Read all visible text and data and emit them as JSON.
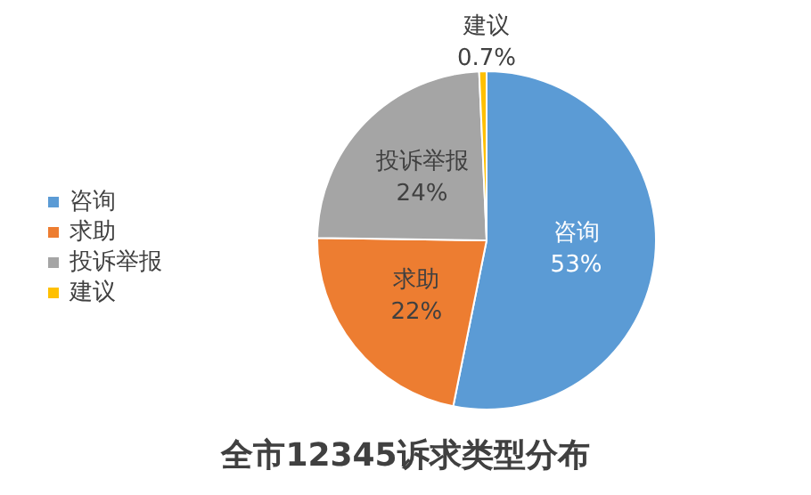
{
  "chart_data": {
    "type": "pie",
    "title": "全市12345诉求类型分布",
    "categories": [
      "咨询",
      "求助",
      "投诉举报",
      "建议"
    ],
    "values": [
      53,
      22,
      24,
      0.7
    ],
    "colors": [
      "#5b9bd5",
      "#ed7d31",
      "#a5a5a5",
      "#ffc000"
    ],
    "value_labels": [
      "53%",
      "22%",
      "24%",
      "0.7%"
    ],
    "legend": "left"
  }
}
